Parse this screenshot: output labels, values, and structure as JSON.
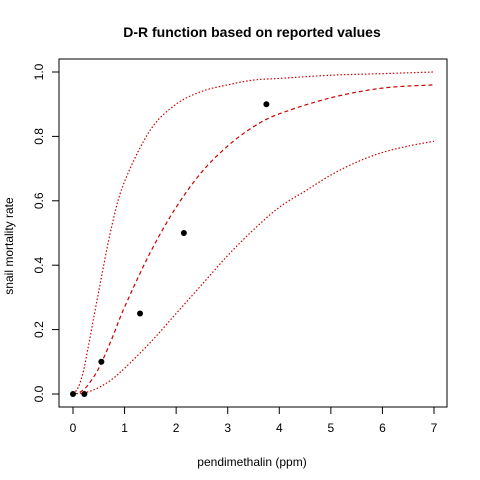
{
  "chart_data": {
    "type": "scatter",
    "title": "D-R function based on reported values",
    "xlabel": "pendimethalin (ppm)",
    "ylabel": "snail mortality rate",
    "xlim": [
      0,
      7
    ],
    "ylim": [
      0,
      1
    ],
    "x_ticks": [
      "0",
      "1",
      "2",
      "3",
      "4",
      "5",
      "6",
      "7"
    ],
    "y_ticks": [
      "0.0",
      "0.2",
      "0.4",
      "0.6",
      "0.8",
      "1.0"
    ],
    "points": [
      {
        "x": 0.0,
        "y": 0.0
      },
      {
        "x": 0.22,
        "y": 0.0
      },
      {
        "x": 0.55,
        "y": 0.1
      },
      {
        "x": 1.3,
        "y": 0.25
      },
      {
        "x": 2.15,
        "y": 0.5
      },
      {
        "x": 3.75,
        "y": 0.9
      }
    ],
    "curves": [
      {
        "style": "dashed",
        "color": "#cc0000",
        "x": [
          0.0,
          0.1,
          0.2,
          0.3,
          0.5,
          0.75,
          1.0,
          1.5,
          2.0,
          2.5,
          3.0,
          3.5,
          4.0,
          5.0,
          6.0,
          7.0
        ],
        "y": [
          0.0,
          0.003,
          0.013,
          0.03,
          0.08,
          0.17,
          0.27,
          0.44,
          0.58,
          0.69,
          0.77,
          0.83,
          0.87,
          0.92,
          0.95,
          0.96
        ]
      },
      {
        "style": "dotted",
        "color": "#cc0000",
        "x": [
          0.0,
          0.1,
          0.2,
          0.3,
          0.5,
          0.75,
          1.0,
          1.5,
          2.0,
          2.5,
          3.0,
          3.5,
          4.0,
          5.0,
          6.0,
          7.0
        ],
        "y": [
          0.0,
          0.02,
          0.07,
          0.15,
          0.32,
          0.52,
          0.66,
          0.82,
          0.9,
          0.94,
          0.96,
          0.975,
          0.98,
          0.99,
          0.995,
          1.0
        ]
      },
      {
        "style": "dotted",
        "color": "#cc0000",
        "x": [
          0.0,
          0.25,
          0.5,
          0.75,
          1.0,
          1.5,
          2.0,
          2.5,
          3.0,
          3.5,
          4.0,
          4.5,
          5.0,
          5.5,
          6.0,
          6.5,
          7.0
        ],
        "y": [
          0.0,
          0.005,
          0.02,
          0.045,
          0.08,
          0.16,
          0.25,
          0.34,
          0.43,
          0.51,
          0.58,
          0.63,
          0.68,
          0.72,
          0.75,
          0.77,
          0.785
        ]
      }
    ]
  }
}
